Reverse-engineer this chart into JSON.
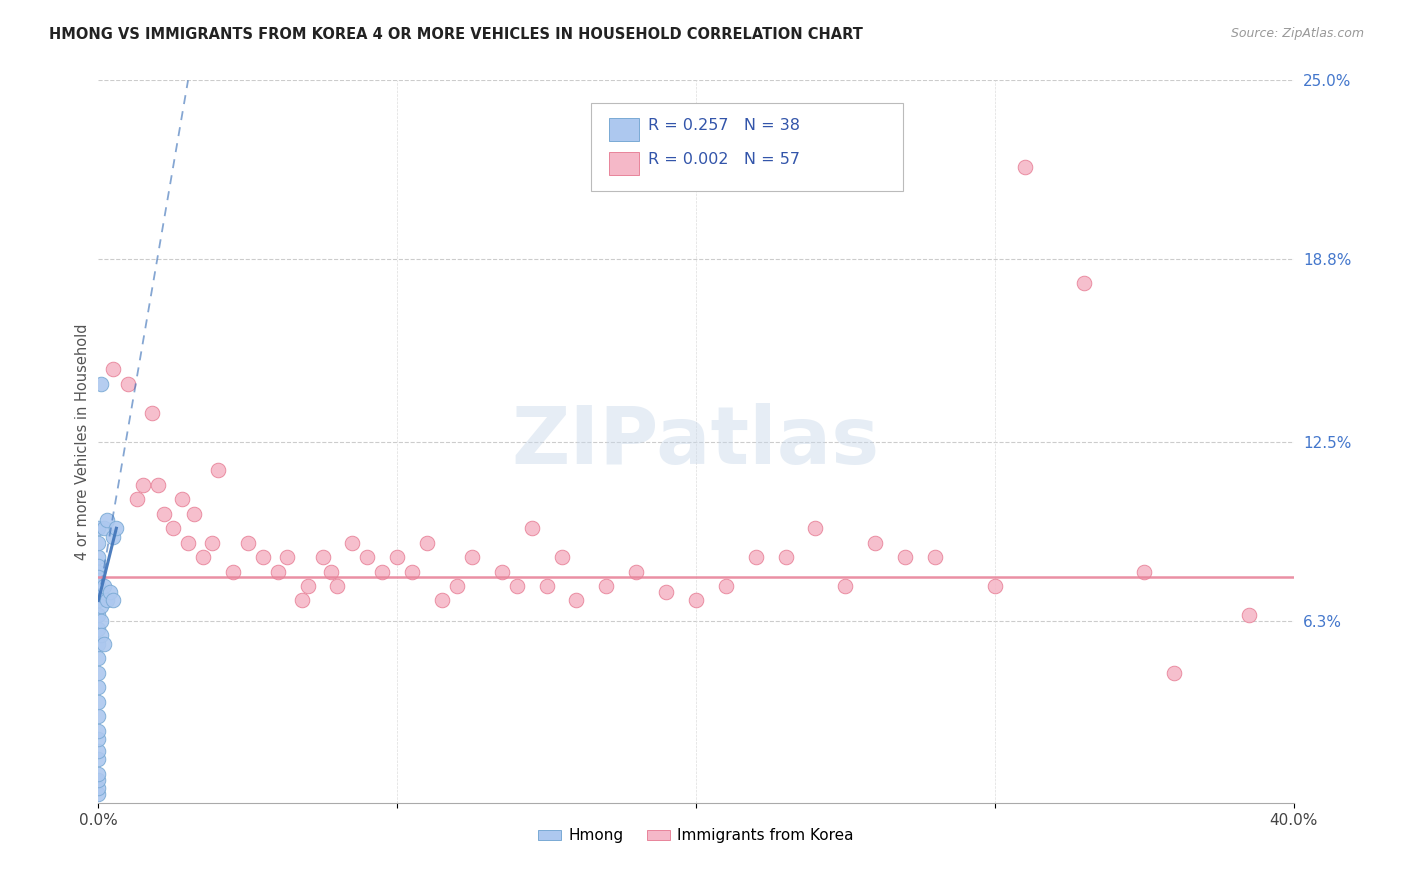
{
  "title": "HMONG VS IMMIGRANTS FROM KOREA 4 OR MORE VEHICLES IN HOUSEHOLD CORRELATION CHART",
  "source": "Source: ZipAtlas.com",
  "ylabel": "4 or more Vehicles in Household",
  "xlim": [
    0.0,
    40.0
  ],
  "ylim": [
    0.0,
    25.0
  ],
  "ytick_vals_right": [
    6.3,
    12.5,
    18.8,
    25.0
  ],
  "ytick_labels_right": [
    "6.3%",
    "12.5%",
    "18.8%",
    "25.0%"
  ],
  "hmong_color": "#adc8ef",
  "hmong_edge_color": "#7aaad4",
  "korea_color": "#f5b8c8",
  "korea_edge_color": "#e8849a",
  "trend_hmong_color": "#4477bb",
  "trend_korea_color": "#e8849a",
  "legend_text_color": "#3355aa",
  "R_hmong": 0.257,
  "N_hmong": 38,
  "R_korea": 0.002,
  "N_korea": 57,
  "watermark": "ZIPatlas",
  "hmong_x": [
    0.0,
    0.0,
    0.0,
    0.0,
    0.0,
    0.0,
    0.0,
    0.0,
    0.0,
    0.0,
    0.0,
    0.0,
    0.0,
    0.0,
    0.0,
    0.0,
    0.0,
    0.0,
    0.0,
    0.0,
    0.0,
    0.0,
    0.0,
    0.0,
    0.1,
    0.1,
    0.1,
    0.1,
    0.1,
    0.2,
    0.2,
    0.2,
    0.3,
    0.3,
    0.4,
    0.5,
    0.5,
    0.6
  ],
  "hmong_y": [
    0.3,
    0.5,
    0.8,
    1.0,
    1.5,
    1.8,
    2.2,
    2.5,
    3.0,
    3.5,
    4.0,
    4.5,
    5.0,
    5.5,
    6.0,
    6.5,
    7.0,
    7.5,
    8.0,
    8.5,
    9.0,
    9.5,
    8.2,
    7.8,
    7.2,
    6.8,
    6.3,
    5.8,
    14.5,
    9.5,
    7.5,
    5.5,
    9.8,
    7.0,
    7.3,
    9.2,
    7.0,
    9.5
  ],
  "korea_x": [
    0.5,
    1.0,
    1.3,
    1.5,
    1.8,
    2.0,
    2.2,
    2.5,
    2.8,
    3.0,
    3.2,
    3.5,
    3.8,
    4.0,
    4.5,
    5.0,
    5.5,
    6.0,
    6.3,
    6.8,
    7.0,
    7.5,
    7.8,
    8.0,
    8.5,
    9.0,
    9.5,
    10.0,
    10.5,
    11.0,
    11.5,
    12.0,
    12.5,
    13.5,
    14.0,
    14.5,
    15.0,
    15.5,
    16.0,
    17.0,
    18.0,
    19.0,
    20.0,
    21.0,
    22.0,
    23.0,
    24.0,
    25.0,
    26.0,
    27.0,
    28.0,
    30.0,
    31.0,
    33.0,
    35.0,
    36.0,
    38.5
  ],
  "korea_y": [
    15.0,
    14.5,
    10.5,
    11.0,
    13.5,
    11.0,
    10.0,
    9.5,
    10.5,
    9.0,
    10.0,
    8.5,
    9.0,
    11.5,
    8.0,
    9.0,
    8.5,
    8.0,
    8.5,
    7.0,
    7.5,
    8.5,
    8.0,
    7.5,
    9.0,
    8.5,
    8.0,
    8.5,
    8.0,
    9.0,
    7.0,
    7.5,
    8.5,
    8.0,
    7.5,
    9.5,
    7.5,
    8.5,
    7.0,
    7.5,
    8.0,
    7.3,
    7.0,
    7.5,
    8.5,
    8.5,
    9.5,
    7.5,
    9.0,
    8.5,
    8.5,
    7.5,
    22.0,
    18.0,
    8.0,
    4.5,
    6.5
  ],
  "korea_trend_y_flat": 7.8
}
